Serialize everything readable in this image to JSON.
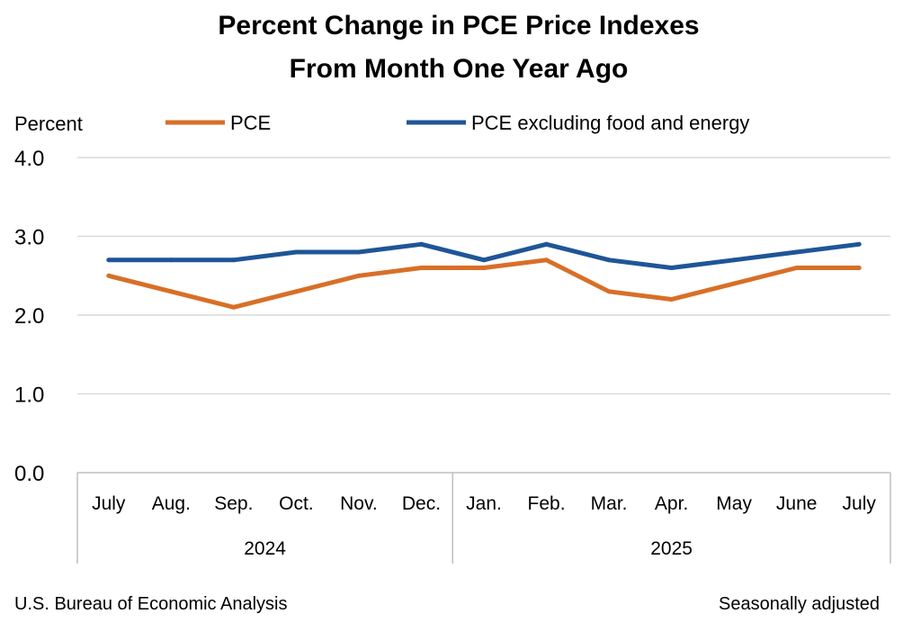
{
  "chart_data": {
    "type": "line",
    "title": [
      "Percent Change in PCE Price Indexes",
      "From Month One Year Ago"
    ],
    "ylabel": "Percent",
    "ylim": [
      0,
      4
    ],
    "yticks": [
      "0.0",
      "1.0",
      "2.0",
      "3.0",
      "4.0"
    ],
    "grid": true,
    "legend_placement": "top",
    "categories": [
      "July",
      "Aug.",
      "Sep.",
      "Oct.",
      "Nov.",
      "Dec.",
      "Jan.",
      "Feb.",
      "Mar.",
      "Apr.",
      "May",
      "June",
      "July"
    ],
    "year_groups": [
      {
        "label": "2024",
        "count": 6
      },
      {
        "label": "2025",
        "count": 7
      }
    ],
    "series": [
      {
        "name": "PCE",
        "color": "#d86f27",
        "values": [
          2.5,
          2.3,
          2.1,
          2.3,
          2.5,
          2.6,
          2.6,
          2.7,
          2.3,
          2.2,
          2.4,
          2.6,
          2.6
        ]
      },
      {
        "name": "PCE excluding food and energy",
        "color": "#1f5597",
        "values": [
          2.7,
          2.7,
          2.7,
          2.8,
          2.8,
          2.9,
          2.7,
          2.9,
          2.7,
          2.6,
          2.7,
          2.8,
          2.9
        ]
      }
    ],
    "source": "U.S. Bureau of Economic Analysis",
    "note": "Seasonally adjusted"
  }
}
